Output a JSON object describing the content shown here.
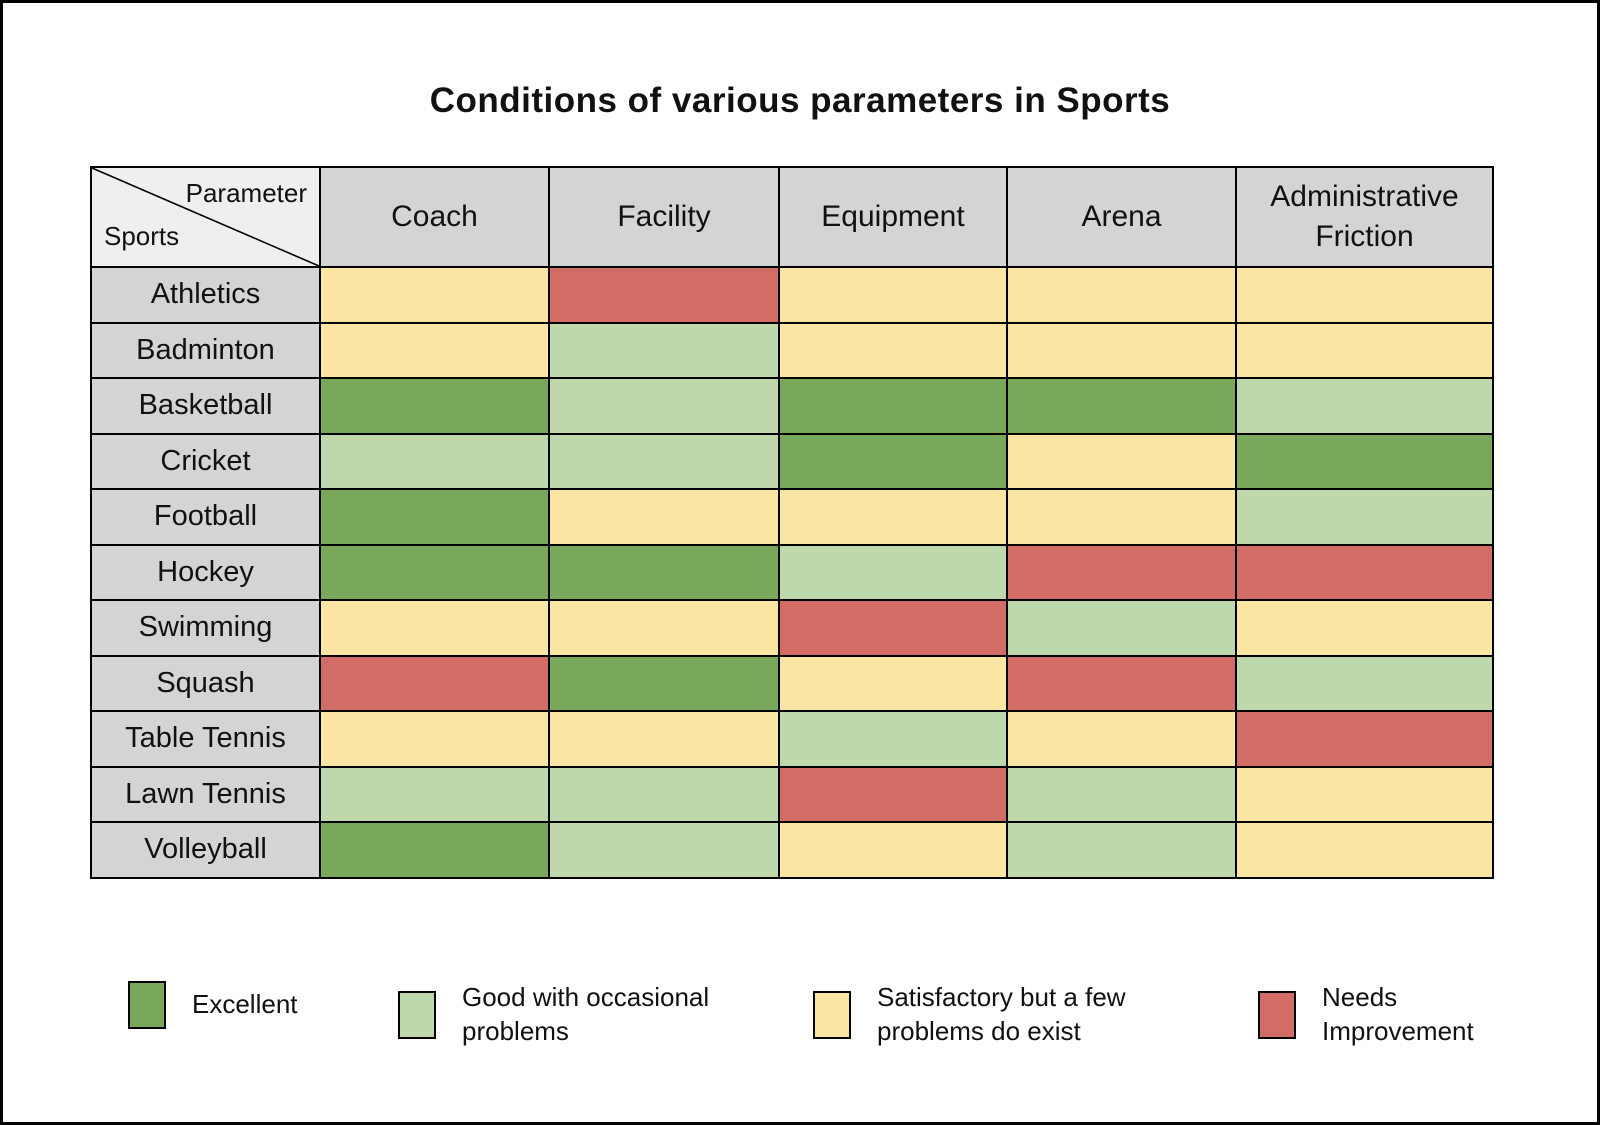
{
  "title": "Conditions of various parameters in Sports",
  "table": {
    "corner": {
      "top_right": "Parameter",
      "bottom_left": "Sports"
    },
    "columns": [
      "Coach",
      "Facility",
      "Equipment",
      "Arena",
      "Administrative Friction"
    ],
    "sports": [
      "Athletics",
      "Badminton",
      "Basketball",
      "Cricket",
      "Football",
      "Hockey",
      "Swimming",
      "Squash",
      "Table Tennis",
      "Lawn Tennis",
      "Volleyball"
    ],
    "cells": [
      [
        "satisfactory",
        "needs_improvement",
        "satisfactory",
        "satisfactory",
        "satisfactory"
      ],
      [
        "satisfactory",
        "good",
        "satisfactory",
        "satisfactory",
        "satisfactory"
      ],
      [
        "excellent",
        "good",
        "excellent",
        "excellent",
        "good"
      ],
      [
        "good",
        "good",
        "excellent",
        "satisfactory",
        "excellent"
      ],
      [
        "excellent",
        "satisfactory",
        "satisfactory",
        "satisfactory",
        "good"
      ],
      [
        "excellent",
        "excellent",
        "good",
        "needs_improvement",
        "needs_improvement"
      ],
      [
        "satisfactory",
        "satisfactory",
        "needs_improvement",
        "good",
        "satisfactory"
      ],
      [
        "needs_improvement",
        "excellent",
        "satisfactory",
        "needs_improvement",
        "good"
      ],
      [
        "satisfactory",
        "satisfactory",
        "good",
        "satisfactory",
        "needs_improvement"
      ],
      [
        "good",
        "good",
        "needs_improvement",
        "good",
        "satisfactory"
      ],
      [
        "excellent",
        "good",
        "satisfactory",
        "good",
        "satisfactory"
      ]
    ]
  },
  "legend": [
    {
      "key": "excellent",
      "label": "Excellent"
    },
    {
      "key": "good",
      "label": "Good with occasional problems"
    },
    {
      "key": "satisfactory",
      "label": "Satisfactory but a few problems do exist"
    },
    {
      "key": "needs_improvement",
      "label": "Needs Improvement"
    }
  ],
  "colors": {
    "excellent": "#7aa85a",
    "good": "#bed8ab",
    "satisfactory": "#fbe5a2",
    "needs_improvement": "#d16c66",
    "header_bg": "#d4d4d4",
    "corner_bg": "#efefef",
    "border": "#000000"
  },
  "chart_data": {
    "type": "heatmap",
    "title": "Conditions of various parameters in Sports",
    "x_categories": [
      "Coach",
      "Facility",
      "Equipment",
      "Arena",
      "Administrative Friction"
    ],
    "y_categories": [
      "Athletics",
      "Badminton",
      "Basketball",
      "Cricket",
      "Football",
      "Hockey",
      "Swimming",
      "Squash",
      "Table Tennis",
      "Lawn Tennis",
      "Volleyball"
    ],
    "levels": {
      "excellent": "Excellent",
      "good": "Good with occasional problems",
      "satisfactory": "Satisfactory but a few problems do exist",
      "needs_improvement": "Needs Improvement"
    },
    "level_colors": {
      "excellent": "#7aa85a",
      "good": "#bed8ab",
      "satisfactory": "#fbe5a2",
      "needs_improvement": "#d16c66"
    },
    "values": [
      [
        "satisfactory",
        "needs_improvement",
        "satisfactory",
        "satisfactory",
        "satisfactory"
      ],
      [
        "satisfactory",
        "good",
        "satisfactory",
        "satisfactory",
        "satisfactory"
      ],
      [
        "excellent",
        "good",
        "excellent",
        "excellent",
        "good"
      ],
      [
        "good",
        "good",
        "excellent",
        "satisfactory",
        "excellent"
      ],
      [
        "excellent",
        "satisfactory",
        "satisfactory",
        "satisfactory",
        "good"
      ],
      [
        "excellent",
        "excellent",
        "good",
        "needs_improvement",
        "needs_improvement"
      ],
      [
        "satisfactory",
        "satisfactory",
        "needs_improvement",
        "good",
        "satisfactory"
      ],
      [
        "needs_improvement",
        "excellent",
        "satisfactory",
        "needs_improvement",
        "good"
      ],
      [
        "satisfactory",
        "satisfactory",
        "good",
        "satisfactory",
        "needs_improvement"
      ],
      [
        "good",
        "good",
        "needs_improvement",
        "good",
        "satisfactory"
      ],
      [
        "excellent",
        "good",
        "satisfactory",
        "good",
        "satisfactory"
      ]
    ],
    "legend_position": "bottom",
    "grid": true
  }
}
